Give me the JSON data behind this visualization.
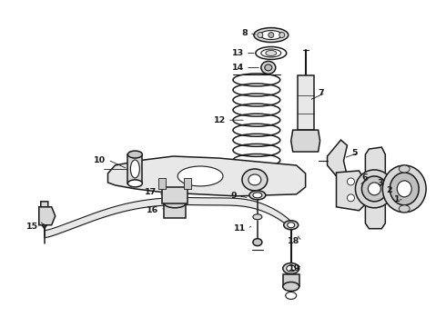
{
  "background_color": "#ffffff",
  "line_color": "#1a1a1a",
  "fig_width": 4.9,
  "fig_height": 3.6,
  "dpi": 100,
  "label_positions": {
    "8": [
      2.58,
      0.44,
      2.72,
      0.5
    ],
    "13": [
      2.52,
      0.56,
      2.68,
      0.6
    ],
    "14": [
      2.52,
      0.64,
      2.66,
      0.67
    ],
    "12": [
      2.36,
      0.8,
      2.62,
      0.82
    ],
    "7": [
      3.58,
      1.05,
      3.45,
      1.1
    ],
    "5": [
      3.9,
      1.42,
      3.78,
      1.5
    ],
    "6": [
      3.9,
      1.58,
      3.82,
      1.6
    ],
    "3": [
      4.1,
      1.65,
      4.05,
      1.68
    ],
    "2": [
      4.18,
      1.72,
      4.14,
      1.74
    ],
    "1": [
      4.26,
      1.8,
      4.26,
      1.78
    ],
    "10": [
      2.02,
      1.4,
      2.18,
      1.45
    ],
    "9": [
      2.62,
      1.62,
      2.72,
      1.58
    ],
    "11": [
      2.75,
      1.7,
      2.84,
      1.65
    ],
    "15": [
      0.28,
      1.98,
      0.48,
      1.96
    ],
    "16": [
      1.76,
      1.92,
      1.88,
      1.88
    ],
    "17": [
      1.68,
      1.82,
      1.8,
      1.8
    ],
    "18": [
      2.84,
      2.28,
      2.86,
      2.22
    ],
    "19": [
      2.84,
      2.46,
      2.84,
      2.42
    ]
  }
}
